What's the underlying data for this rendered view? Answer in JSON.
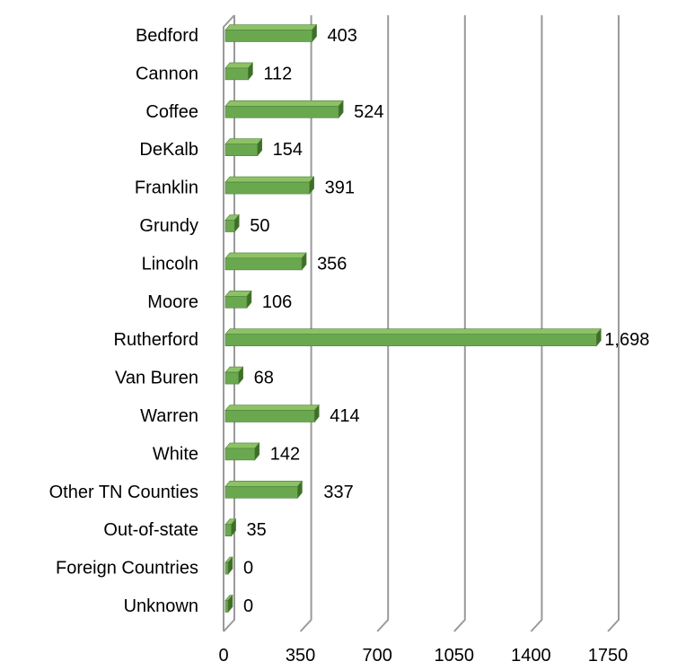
{
  "chart_data": {
    "type": "bar",
    "orientation": "horizontal",
    "categories": [
      "Bedford",
      "Cannon",
      "Coffee",
      "DeKalb",
      "Franklin",
      "Grundy",
      "Lincoln",
      "Moore",
      "Rutherford",
      "Van Buren",
      "Warren",
      "White",
      "Other TN Counties",
      "Out-of-state",
      "Foreign Countries",
      "Unknown"
    ],
    "values": [
      403,
      112,
      524,
      154,
      391,
      50,
      356,
      106,
      1698,
      68,
      414,
      142,
      337,
      35,
      0,
      0
    ],
    "value_labels": [
      "403",
      "112",
      "524",
      "154",
      "391",
      "50",
      "356",
      "106",
      "1,698",
      "68",
      "414",
      "142",
      "337",
      "35",
      "0",
      "0"
    ],
    "xlim": [
      0,
      1750
    ],
    "xticks": [
      0,
      350,
      700,
      1050,
      1400,
      1750
    ],
    "xtick_labels": [
      "0",
      "350",
      "700",
      "1050",
      "1400",
      "1750"
    ],
    "title": "",
    "xlabel": "",
    "ylabel": "",
    "grid": true,
    "legend": "none",
    "style": "3d",
    "colors": {
      "bar_front": "#6aa84f",
      "bar_top": "#8cc265",
      "bar_side": "#3f6e29",
      "bar_edge": "#4e7f38",
      "grid": "#9a9a9a"
    }
  }
}
